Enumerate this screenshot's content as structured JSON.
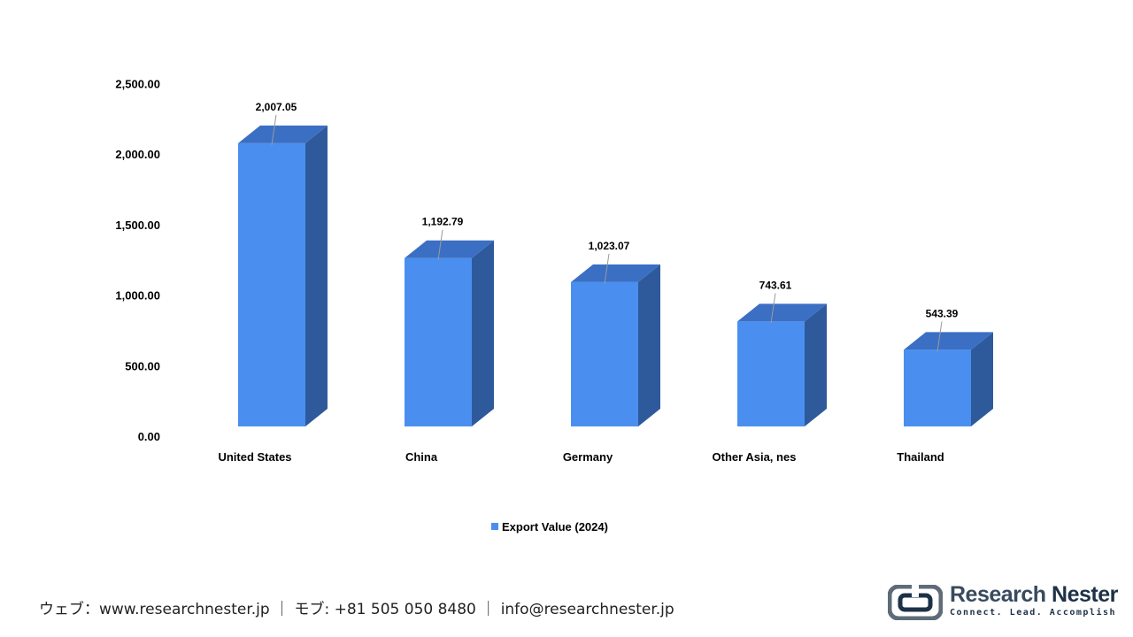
{
  "chart_data": {
    "type": "bar",
    "categories": [
      "United States",
      "China",
      "Germany",
      "Other Asia, nes",
      "Thailand"
    ],
    "series": [
      {
        "name": "Export Value (2024)",
        "values": [
          2007.05,
          1192.79,
          1023.07,
          743.61,
          543.39
        ]
      }
    ],
    "data_labels": [
      "2,007.05",
      "1,192.79",
      "1,023.07",
      "743.61",
      "543.39"
    ],
    "yticks": [
      "0.00",
      "500.00",
      "1,000.00",
      "1,500.00",
      "2,000.00",
      "2,500.00"
    ],
    "ylim": [
      0,
      2500
    ],
    "grid": false,
    "legend_position": "bottom",
    "style": "3d-column",
    "colors": {
      "front": "#4a8ff0",
      "top": "#3a6fc4",
      "side": "#2e5a9c"
    }
  },
  "footer": {
    "web": "ウェブ：www.researchnester.jp",
    "phone": "モブ: +81 505 050 8480",
    "email": "info@researchnester.jp",
    "separator": "｜"
  },
  "logo": {
    "name_part1": "Research",
    "name_part2": "Nester",
    "tagline": "Connect. Lead. Accomplish"
  }
}
